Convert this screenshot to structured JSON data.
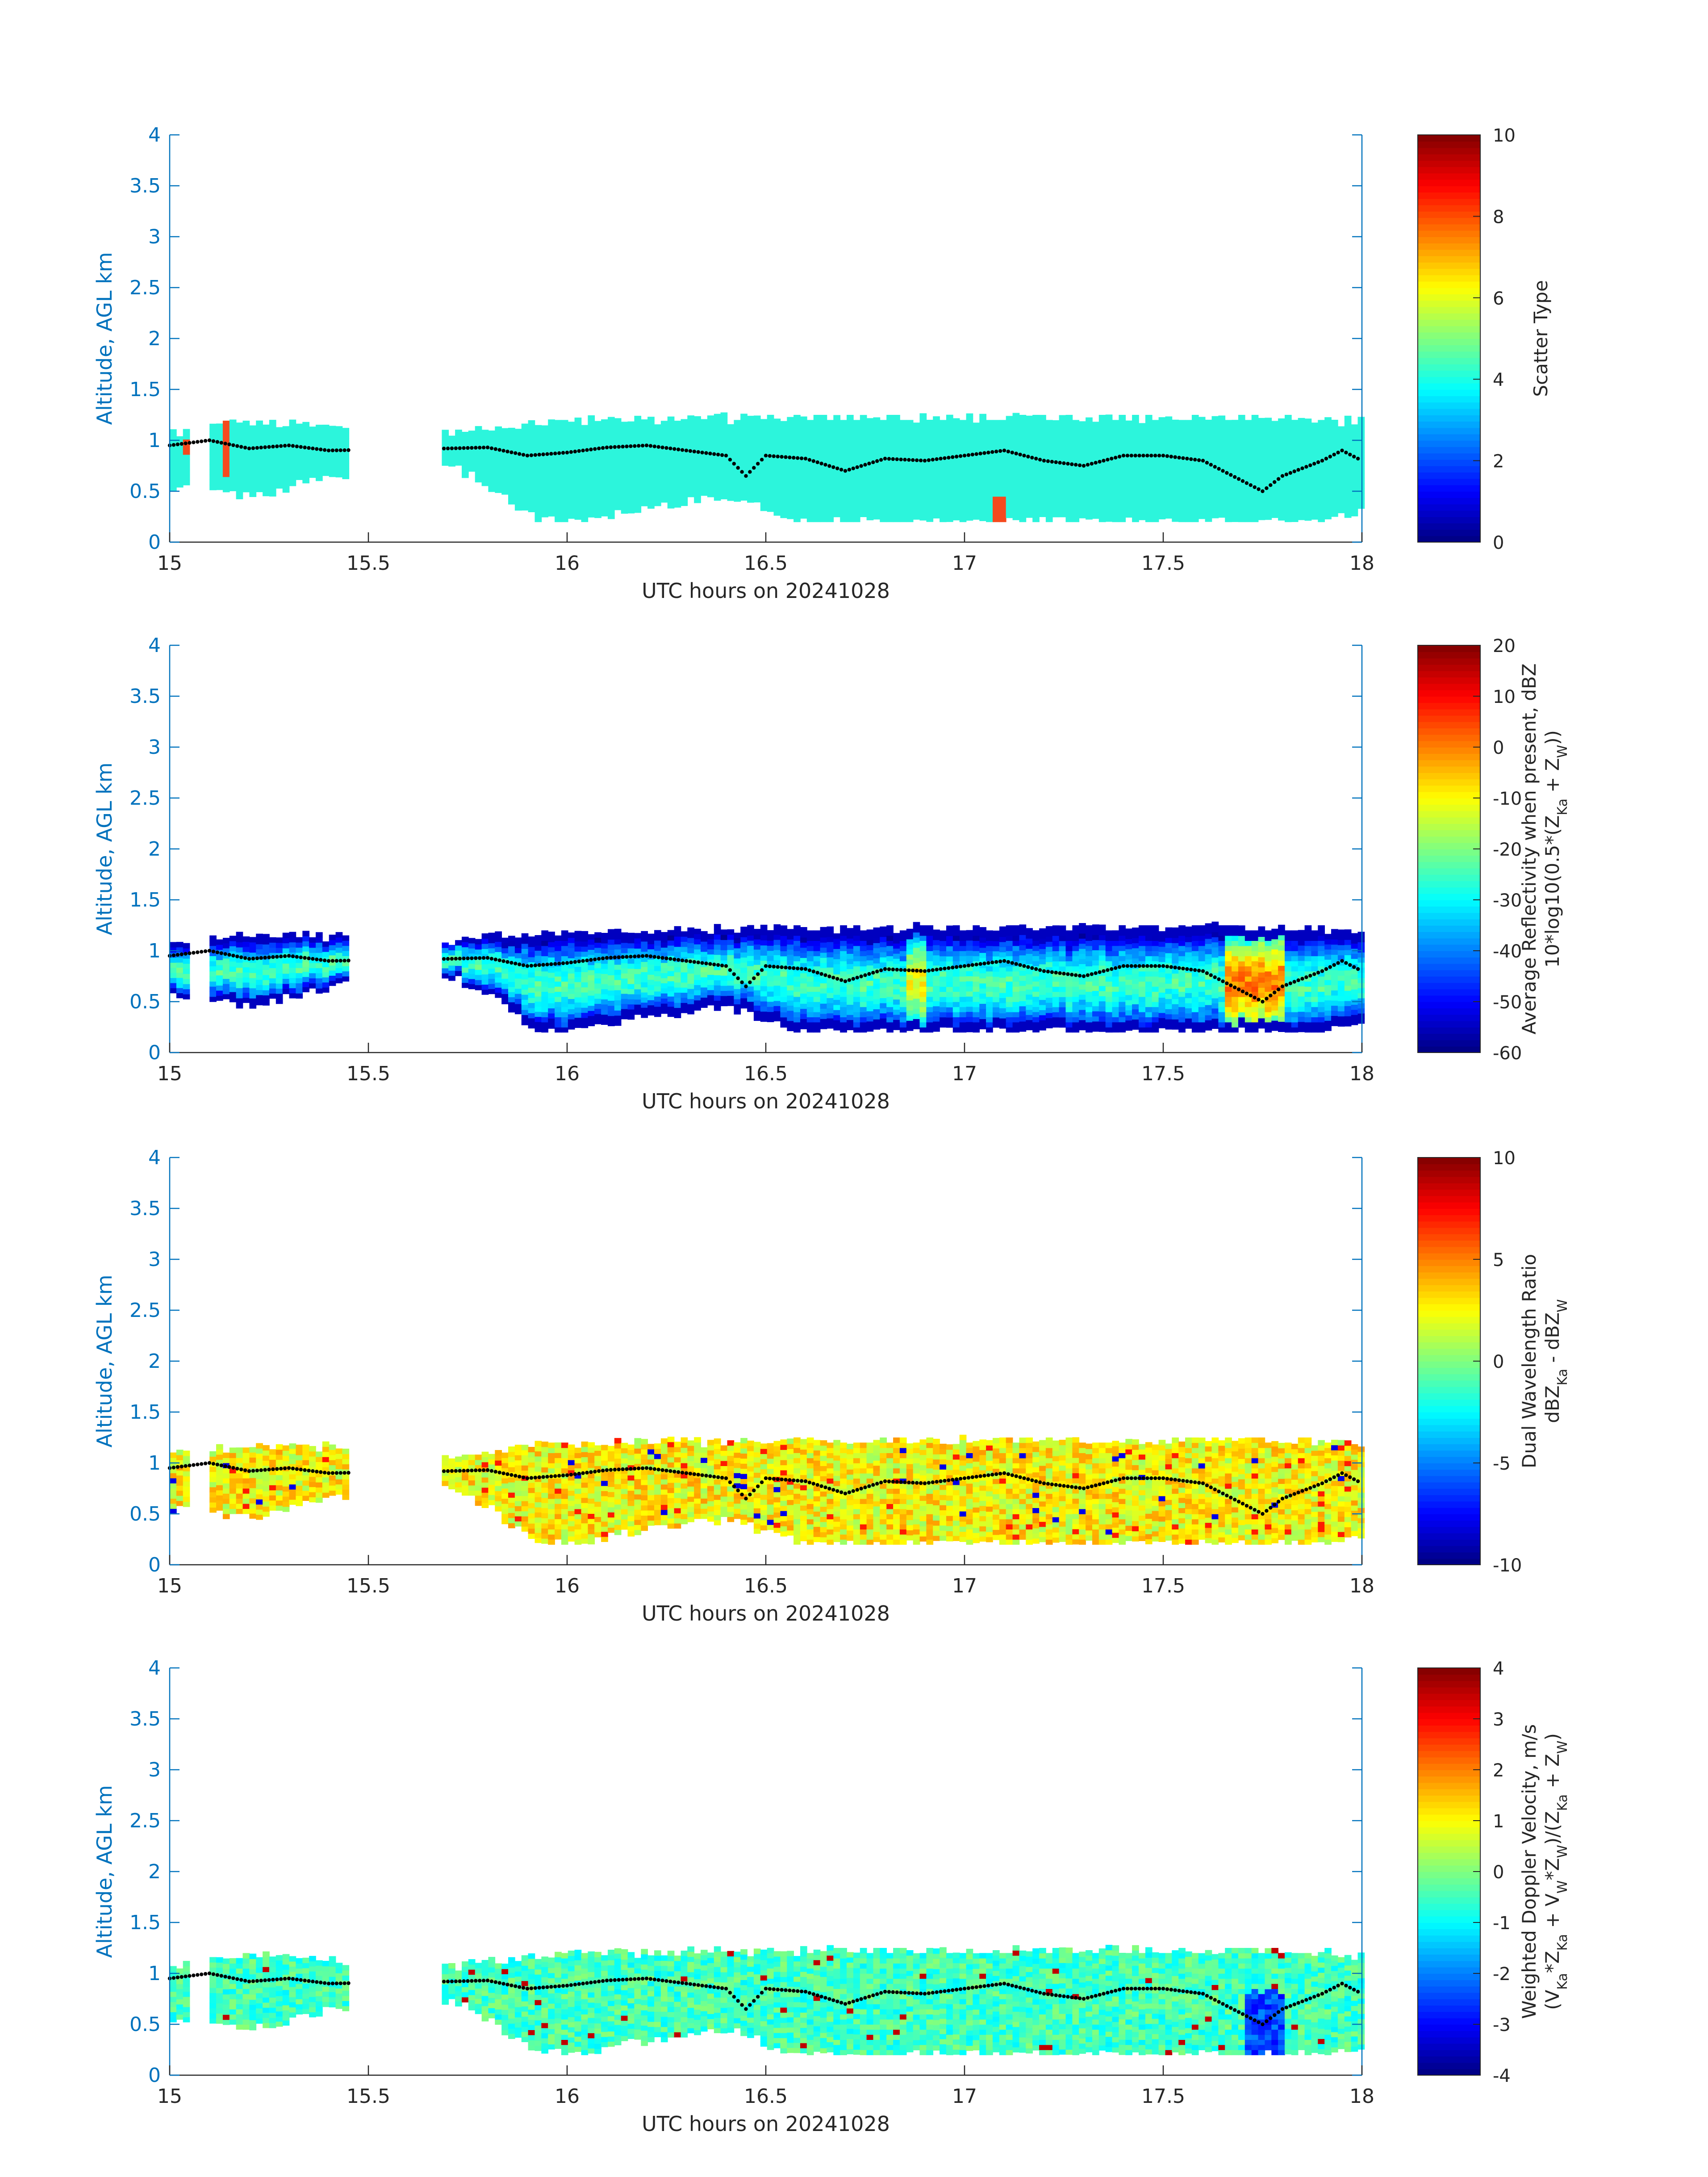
{
  "colors": {
    "axis_blue": "#0072bd",
    "text_dark": "#262626",
    "dot": "#000000",
    "scatter_main": "#2cf5dc",
    "scatter_alt": "#f54a1e"
  },
  "chart_data": [
    {
      "type": "heatmap",
      "panel": 1,
      "xlabel": "UTC hours on 20241028",
      "ylabel": "Altitude, AGL km",
      "xlim": [
        15,
        18
      ],
      "ylim": [
        0,
        4
      ],
      "xticks": [
        15,
        15.5,
        16,
        16.5,
        17,
        17.5,
        18
      ],
      "xtick_labels": [
        "15",
        "15.5",
        "16",
        "16.5",
        "17",
        "17.5",
        "18"
      ],
      "yticks": [
        0,
        0.5,
        1,
        1.5,
        2,
        2.5,
        3,
        3.5,
        4
      ],
      "ytick_labels": [
        "0",
        "0.5",
        "1",
        "1.5",
        "2",
        "2.5",
        "3",
        "3.5",
        "4"
      ],
      "colorbar": {
        "min": 0,
        "max": 10,
        "ticks": [
          0,
          2,
          4,
          6,
          8,
          10
        ],
        "tick_labels": [
          "0",
          "2",
          "4",
          "6",
          "8",
          "10"
        ],
        "label_lines": [
          "Scatter Type"
        ]
      },
      "field": "scatter",
      "dominant_value": 4,
      "secondary_value": 8
    },
    {
      "type": "heatmap",
      "panel": 2,
      "xlabel": "UTC hours on 20241028",
      "ylabel": "Altitude, AGL km",
      "xlim": [
        15,
        18
      ],
      "ylim": [
        0,
        4
      ],
      "xticks": [
        15,
        15.5,
        16,
        16.5,
        17,
        17.5,
        18
      ],
      "xtick_labels": [
        "15",
        "15.5",
        "16",
        "16.5",
        "17",
        "17.5",
        "18"
      ],
      "yticks": [
        0,
        0.5,
        1,
        1.5,
        2,
        2.5,
        3,
        3.5,
        4
      ],
      "ytick_labels": [
        "0",
        "0.5",
        "1",
        "1.5",
        "2",
        "2.5",
        "3",
        "3.5",
        "4"
      ],
      "colorbar": {
        "min": -60,
        "max": 20,
        "ticks": [
          -60,
          -50,
          -40,
          -30,
          -20,
          -10,
          0,
          10,
          20
        ],
        "tick_labels": [
          "-60",
          "-50",
          "-40",
          "-30",
          "-20",
          "-10",
          "0",
          "10",
          "20"
        ],
        "label_lines": [
          "Average Reflectivity when present, dBZ",
          "10*log10(0.5*(Z_Ka + Z_W))"
        ]
      },
      "field": "reflectivity"
    },
    {
      "type": "heatmap",
      "panel": 3,
      "xlabel": "UTC hours on 20241028",
      "ylabel": "Altitude, AGL km",
      "xlim": [
        15,
        18
      ],
      "ylim": [
        0,
        4
      ],
      "xticks": [
        15,
        15.5,
        16,
        16.5,
        17,
        17.5,
        18
      ],
      "xtick_labels": [
        "15",
        "15.5",
        "16",
        "16.5",
        "17",
        "17.5",
        "18"
      ],
      "yticks": [
        0,
        0.5,
        1,
        1.5,
        2,
        2.5,
        3,
        3.5,
        4
      ],
      "ytick_labels": [
        "0",
        "0.5",
        "1",
        "1.5",
        "2",
        "2.5",
        "3",
        "3.5",
        "4"
      ],
      "colorbar": {
        "min": -10,
        "max": 10,
        "ticks": [
          -10,
          -5,
          0,
          5,
          10
        ],
        "tick_labels": [
          "-10",
          "-5",
          "0",
          "5",
          "10"
        ],
        "label_lines": [
          "Dual Wavelength Ratio",
          "dBZ_Ka - dBZ_W"
        ]
      },
      "field": "dwr"
    },
    {
      "type": "heatmap",
      "panel": 4,
      "xlabel": "UTC hours on 20241028",
      "ylabel": "Altitude, AGL km",
      "xlim": [
        15,
        18
      ],
      "ylim": [
        0,
        4
      ],
      "xticks": [
        15,
        15.5,
        16,
        16.5,
        17,
        17.5,
        18
      ],
      "xtick_labels": [
        "15",
        "15.5",
        "16",
        "16.5",
        "17",
        "17.5",
        "18"
      ],
      "yticks": [
        0,
        0.5,
        1,
        1.5,
        2,
        2.5,
        3,
        3.5,
        4
      ],
      "ytick_labels": [
        "0",
        "0.5",
        "1",
        "1.5",
        "2",
        "2.5",
        "3",
        "3.5",
        "4"
      ],
      "colorbar": {
        "min": -4,
        "max": 4,
        "ticks": [
          -4,
          -3,
          -2,
          -1,
          0,
          1,
          2,
          3,
          4
        ],
        "tick_labels": [
          "-4",
          "-3",
          "-2",
          "-1",
          "0",
          "1",
          "2",
          "3",
          "4"
        ],
        "label_lines": [
          "Weighted Doppler Velocity, m/s",
          "(V_Ka*Z_Ka + V_W*Z_W)/(Z_Ka + Z_W)"
        ]
      },
      "field": "velocity"
    }
  ],
  "cloud_top_km": [
    [
      15.0,
      1.05
    ],
    [
      15.1,
      1.12
    ],
    [
      15.2,
      1.15
    ],
    [
      15.3,
      1.15
    ],
    [
      15.4,
      1.12
    ],
    [
      15.7,
      1.05
    ],
    [
      15.8,
      1.1
    ],
    [
      15.9,
      1.15
    ],
    [
      16.0,
      1.17
    ],
    [
      16.2,
      1.18
    ],
    [
      16.5,
      1.2
    ],
    [
      16.8,
      1.2
    ],
    [
      17.0,
      1.2
    ],
    [
      17.3,
      1.2
    ],
    [
      17.5,
      1.2
    ],
    [
      17.7,
      1.22
    ],
    [
      17.9,
      1.18
    ],
    [
      18.0,
      1.15
    ]
  ],
  "cloud_base_km": [
    [
      15.0,
      0.55
    ],
    [
      15.2,
      0.45
    ],
    [
      15.4,
      0.65
    ],
    [
      15.7,
      0.75
    ],
    [
      15.8,
      0.55
    ],
    [
      15.9,
      0.25
    ],
    [
      16.0,
      0.2
    ],
    [
      16.2,
      0.35
    ],
    [
      16.4,
      0.45
    ],
    [
      16.5,
      0.3
    ],
    [
      16.6,
      0.2
    ],
    [
      17.0,
      0.2
    ],
    [
      17.5,
      0.2
    ],
    [
      17.9,
      0.2
    ],
    [
      18.0,
      0.3
    ]
  ],
  "base_dots_km": [
    [
      15.0,
      0.95
    ],
    [
      15.1,
      1.0
    ],
    [
      15.2,
      0.92
    ],
    [
      15.3,
      0.95
    ],
    [
      15.4,
      0.9
    ],
    [
      15.7,
      0.92
    ],
    [
      15.8,
      0.93
    ],
    [
      15.9,
      0.85
    ],
    [
      16.0,
      0.88
    ],
    [
      16.1,
      0.93
    ],
    [
      16.2,
      0.95
    ],
    [
      16.3,
      0.9
    ],
    [
      16.4,
      0.85
    ],
    [
      16.45,
      0.65
    ],
    [
      16.5,
      0.85
    ],
    [
      16.6,
      0.82
    ],
    [
      16.7,
      0.7
    ],
    [
      16.8,
      0.82
    ],
    [
      16.9,
      0.8
    ],
    [
      17.0,
      0.85
    ],
    [
      17.1,
      0.9
    ],
    [
      17.2,
      0.8
    ],
    [
      17.3,
      0.75
    ],
    [
      17.4,
      0.85
    ],
    [
      17.5,
      0.85
    ],
    [
      17.6,
      0.8
    ],
    [
      17.7,
      0.6
    ],
    [
      17.75,
      0.5
    ],
    [
      17.8,
      0.65
    ],
    [
      17.9,
      0.8
    ],
    [
      17.95,
      0.9
    ],
    [
      18.0,
      0.8
    ]
  ],
  "data_gaps_hours": [
    [
      15.45,
      15.68
    ]
  ]
}
